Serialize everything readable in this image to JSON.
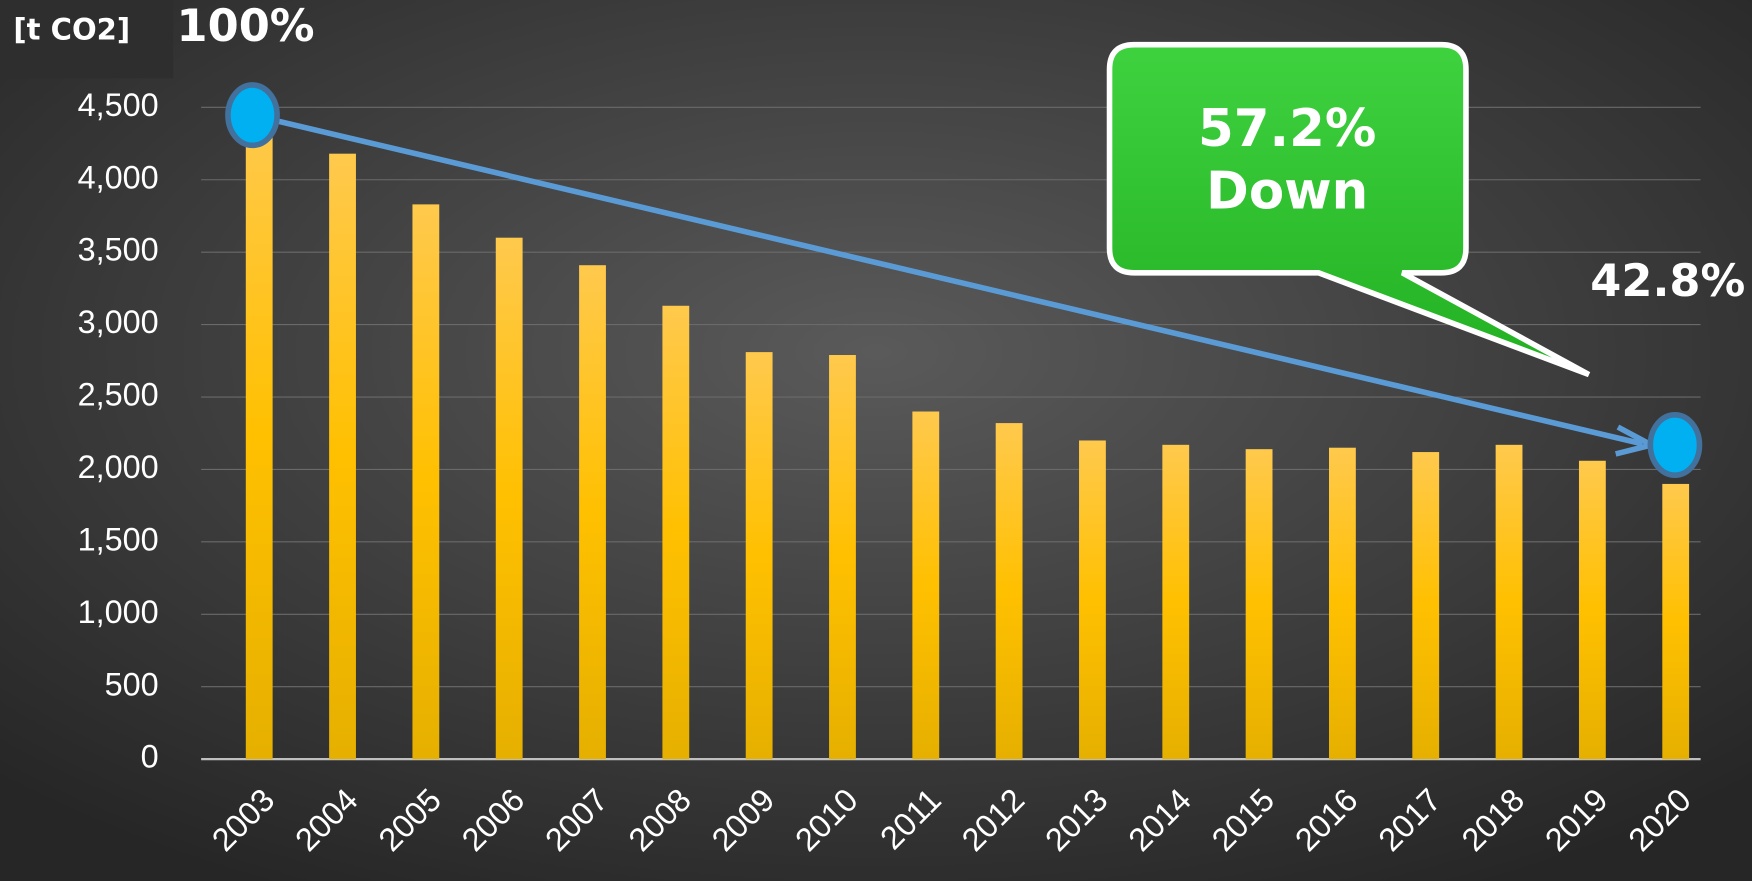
{
  "chart_data": {
    "type": "bar",
    "unit_label": "[t CO2]",
    "start_label": "100%",
    "callout": [
      "57.2%",
      "Down"
    ],
    "end_label": "42.8%",
    "categories": [
      "2003",
      "2004",
      "2005",
      "2006",
      "2007",
      "2008",
      "2009",
      "2010",
      "2011",
      "2012",
      "2013",
      "2014",
      "2015",
      "2016",
      "2017",
      "2018",
      "2019",
      "2020"
    ],
    "values": [
      4450,
      4180,
      3830,
      3600,
      3410,
      3130,
      2810,
      2790,
      2400,
      2320,
      2200,
      2170,
      2140,
      2150,
      2120,
      2170,
      2060,
      1900
    ],
    "color": "#ffc000",
    "ylim": [
      0,
      4500
    ],
    "yticks": [
      0,
      500,
      {
        "value": 1000,
        "label": "1,000"
      },
      {
        "value": 1500,
        "label": "1,500"
      },
      {
        "value": 2000,
        "label": "2,000"
      },
      {
        "value": 2500,
        "label": "2,500"
      },
      {
        "value": 3000,
        "label": "3,000"
      },
      {
        "value": 3500,
        "label": "3,500"
      },
      {
        "value": 4000,
        "label": "4,000"
      },
      {
        "value": 4500,
        "label": "4,500"
      }
    ],
    "grid": true
  }
}
